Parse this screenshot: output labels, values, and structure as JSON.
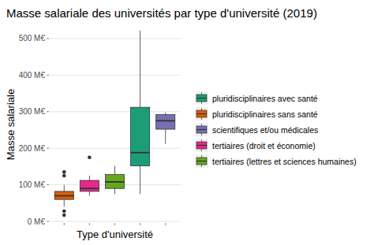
{
  "chart_data": {
    "type": "box",
    "title": "Masse salariale des universités par type d'université (2019)",
    "x_label": "Type d'université",
    "y_label": "Masse salariale",
    "categories": [
      "pluridisciplinaires sans santé",
      "tertiaires (droit et économie)",
      "tertiaires (lettres et sciences humaines)",
      "pluridisciplinaires avec santé",
      "scientifiques et/ou médicales"
    ],
    "tick_labels": "y",
    "ylim": [
      0,
      530
    ],
    "yticks": [
      {
        "value": 0,
        "label": "0 M€"
      },
      {
        "value": 100,
        "label": "100 M€"
      },
      {
        "value": 200,
        "label": "200 M€"
      },
      {
        "value": 300,
        "label": "300 M€"
      },
      {
        "value": 400,
        "label": "400 M€"
      },
      {
        "value": 500,
        "label": "500 M€"
      }
    ],
    "grid": true,
    "legend": "right",
    "series": [
      {
        "name": "pluridisciplinaires avec santé",
        "color": "#1b9e77",
        "low": 75,
        "q1": 152,
        "median": 188,
        "q3": 312,
        "high": 522,
        "outliers": []
      },
      {
        "name": "pluridisciplinaires sans santé",
        "color": "#d95f02",
        "low": 40,
        "q1": 60,
        "median": 70,
        "q3": 82,
        "high": 100,
        "outliers": [
          135,
          125,
          28,
          17
        ]
      },
      {
        "name": "scientifiques et/ou médicales",
        "color": "#7570b3",
        "low": 212,
        "q1": 252,
        "median": 275,
        "q3": 292,
        "high": 298,
        "outliers": []
      },
      {
        "name": "tertiaires (droit et économie)",
        "color": "#e7298a",
        "low": 70,
        "q1": 82,
        "median": 90,
        "q3": 112,
        "high": 125,
        "outliers": [
          175
        ]
      },
      {
        "name": "tertiaires (lettres et sciences humaines)",
        "color": "#66a61e",
        "low": 75,
        "q1": 90,
        "median": 108,
        "q3": 128,
        "high": 152,
        "outliers": []
      }
    ]
  }
}
